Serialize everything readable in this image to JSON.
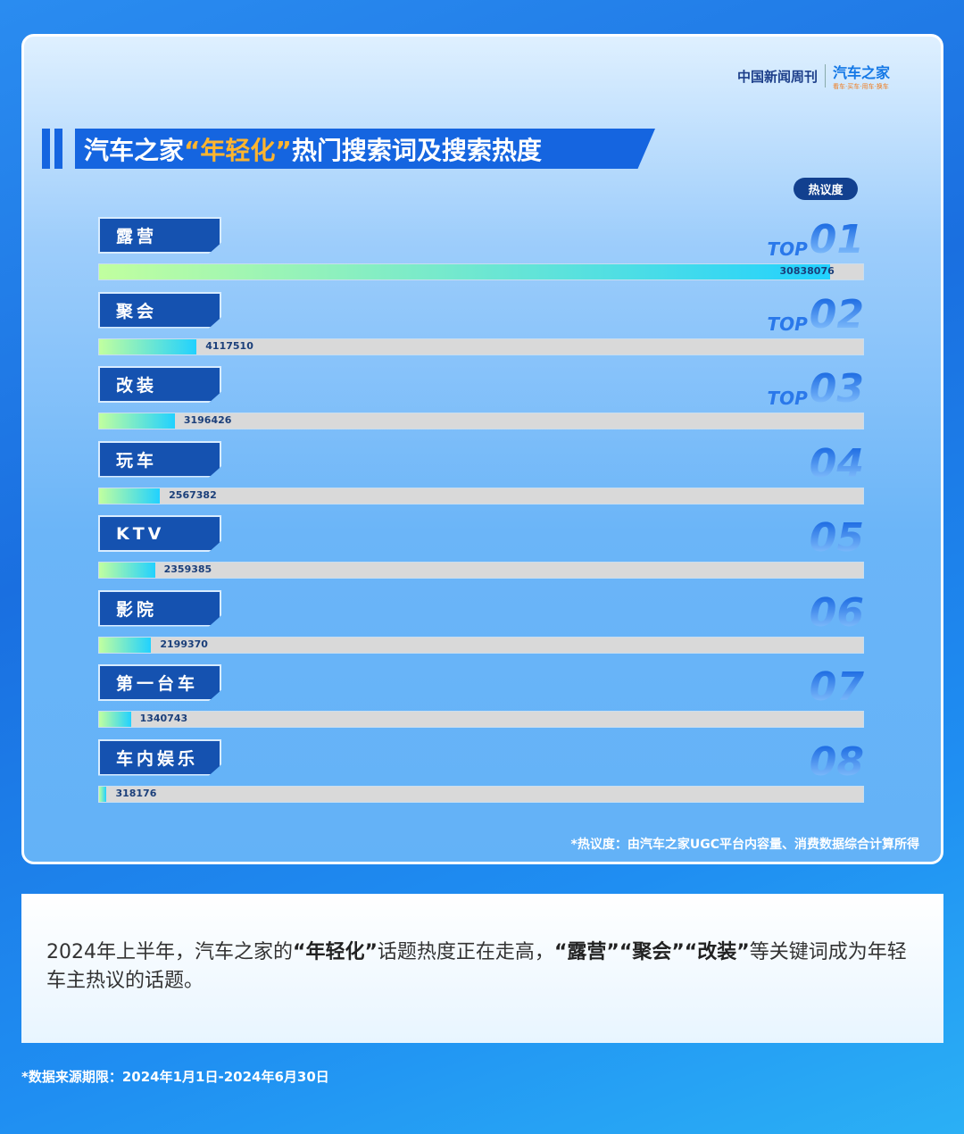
{
  "logo": {
    "publisher": "中国新闻周刊",
    "brand": "汽车之家",
    "brand_slogan": "看车·买车·用车·换车"
  },
  "chart_data": {
    "type": "bar",
    "orientation": "horizontal",
    "title_parts": [
      "汽车之家",
      "“年轻化”",
      "热门搜索词及搜索热度"
    ],
    "legend_badge": "热议度",
    "rank_prefix": "TOP",
    "categories": [
      "露营",
      "聚会",
      "改装",
      "玩车",
      "KTV",
      "影院",
      "第一台车",
      "车内娱乐"
    ],
    "ranks": [
      "01",
      "02",
      "03",
      "04",
      "05",
      "06",
      "07",
      "08"
    ],
    "values": [
      30838076,
      4117510,
      3196426,
      2567382,
      2359385,
      2199370,
      1340743,
      318176
    ],
    "value_labels": [
      "30838076",
      "4117510",
      "3196426",
      "2567382",
      "2359385",
      "2199370",
      "1340743",
      "318176"
    ],
    "fill_colors": [
      "#c1ff9f",
      "#21d1ff"
    ],
    "track_color": "#d9d9d9",
    "note": "*热议度：由汽车之家UGC平台内容量、消费数据综合计算所得"
  },
  "description": {
    "p1": "2024年上半年，汽车之家的",
    "k1": "“年轻化”",
    "p2": "话题热度正在走高，",
    "k2": "“露营”“聚会”“改装”",
    "p3": "等关键词成为年轻车主热议的话题。"
  },
  "source": "*数据来源期限：2024年1月1日-2024年6月30日"
}
